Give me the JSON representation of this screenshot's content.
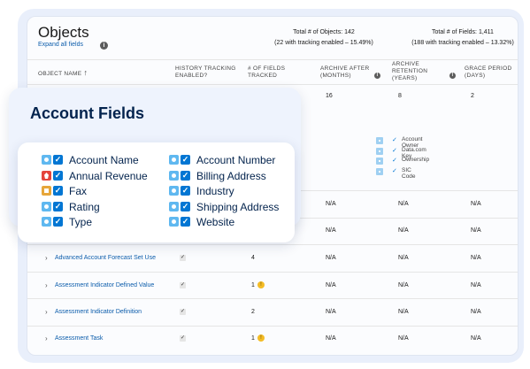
{
  "objects": {
    "title": "Objects",
    "expand_label": "Expand all fields",
    "total_objects_line1": "Total # of Objects: 142",
    "total_objects_line2": "(22 with tracking enabled – 15.49%)",
    "total_fields_line1": "Total # of Fields: 1,411",
    "total_fields_line2": "(188 with tracking enabled – 13.32%)"
  },
  "headers": {
    "object_name": "OBJECT NAME",
    "sort_arrow": "↑",
    "history_tracking": [
      "HISTORY TRACKING",
      "ENABLED?"
    ],
    "fields_tracked": [
      "# OF FIELDS",
      "TRACKED"
    ],
    "archive_after": [
      "ARCHIVE AFTER",
      "(MONTHS)"
    ],
    "archive_retention": [
      "ARCHIVE",
      "RETENTION",
      "(YEARS)"
    ],
    "grace_period": [
      "GRACE PERIOD",
      "(DAYS)"
    ]
  },
  "first_row": {
    "archive_after": "16",
    "archive_retention": "8",
    "grace_period": "2"
  },
  "tracked_fields": [
    "Account Owner",
    "Data.com Key",
    "Ownership",
    "SIC Code"
  ],
  "na_rows": [
    {
      "archive_after": "N/A",
      "archive_retention": "N/A",
      "grace_period": "N/A"
    },
    {
      "archive_after": "N/A",
      "archive_retention": "N/A",
      "grace_period": "N/A"
    }
  ],
  "rows": [
    {
      "name": "Advanced Account Forecast Set Use",
      "tracking": "✓",
      "fields": "4",
      "warn": false,
      "archive_after": "N/A",
      "archive_retention": "N/A",
      "grace_period": "N/A"
    },
    {
      "name": "Assessment Indicator Defined Value",
      "tracking": "✓",
      "fields": "1",
      "warn": true,
      "archive_after": "N/A",
      "archive_retention": "N/A",
      "grace_period": "N/A"
    },
    {
      "name": "Assessment Indicator Definition",
      "tracking": "✓",
      "fields": "2",
      "warn": false,
      "archive_after": "N/A",
      "archive_retention": "N/A",
      "grace_period": "N/A"
    },
    {
      "name": "Assessment Task",
      "tracking": "✓",
      "fields": "1",
      "warn": true,
      "archive_after": "N/A",
      "archive_retention": "N/A",
      "grace_period": "N/A"
    }
  ],
  "info_glyph": "i",
  "warn_glyph": "!",
  "chevron_glyph": "›",
  "check_glyph": "✓",
  "account_fields": {
    "title": "Account Fields",
    "left": [
      {
        "label": "Account Name",
        "icon": "teal"
      },
      {
        "label": "Annual Revenue",
        "icon": "red"
      },
      {
        "label": "Fax",
        "icon": "orange"
      },
      {
        "label": "Rating",
        "icon": "teal"
      },
      {
        "label": "Type",
        "icon": "teal"
      }
    ],
    "right": [
      {
        "label": "Account Number",
        "icon": "teal"
      },
      {
        "label": "Billing Address",
        "icon": "teal"
      },
      {
        "label": "Industry",
        "icon": "teal"
      },
      {
        "label": "Shipping Address",
        "icon": "teal"
      },
      {
        "label": "Website",
        "icon": "teal"
      }
    ]
  },
  "colors": {
    "link": "#0b5cab",
    "check": "#0176d3",
    "title": "#03234d",
    "warn": "#f4bc25"
  }
}
